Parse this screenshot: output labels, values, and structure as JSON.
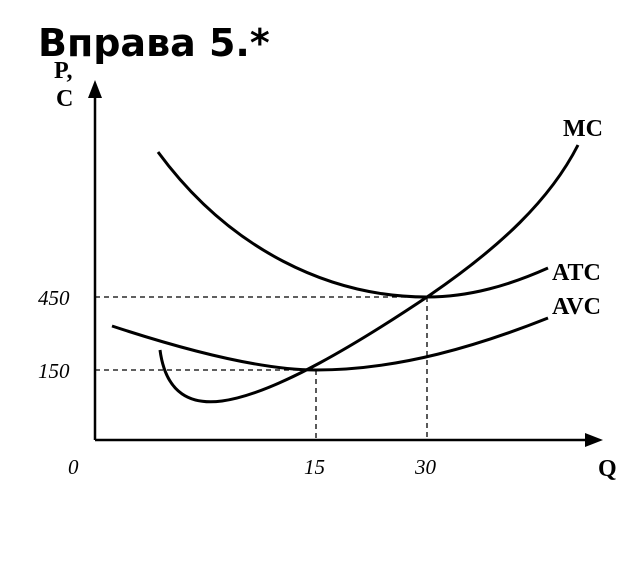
{
  "title": "Вправа 5.*",
  "axes": {
    "y_label_1": "P,",
    "y_label_2": "C",
    "x_label": "Q",
    "origin": "0"
  },
  "ticks": {
    "y": [
      "450",
      "150"
    ],
    "x": [
      "15",
      "30"
    ]
  },
  "curves": [
    "MC",
    "ATC",
    "AVC"
  ]
}
